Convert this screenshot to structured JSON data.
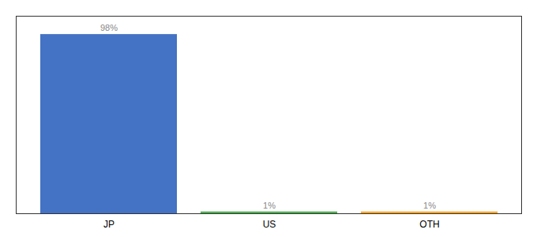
{
  "chart_data": {
    "type": "bar",
    "categories": [
      "JP",
      "US",
      "OTH"
    ],
    "values": [
      98,
      1,
      1
    ],
    "value_labels": [
      "98%",
      "1%",
      "1%"
    ],
    "colors": [
      "#4472c4",
      "#4caf50",
      "#ffa726"
    ],
    "ylim": [
      0,
      108
    ],
    "data_labels": true,
    "tick_labels": "x",
    "grid": false
  }
}
